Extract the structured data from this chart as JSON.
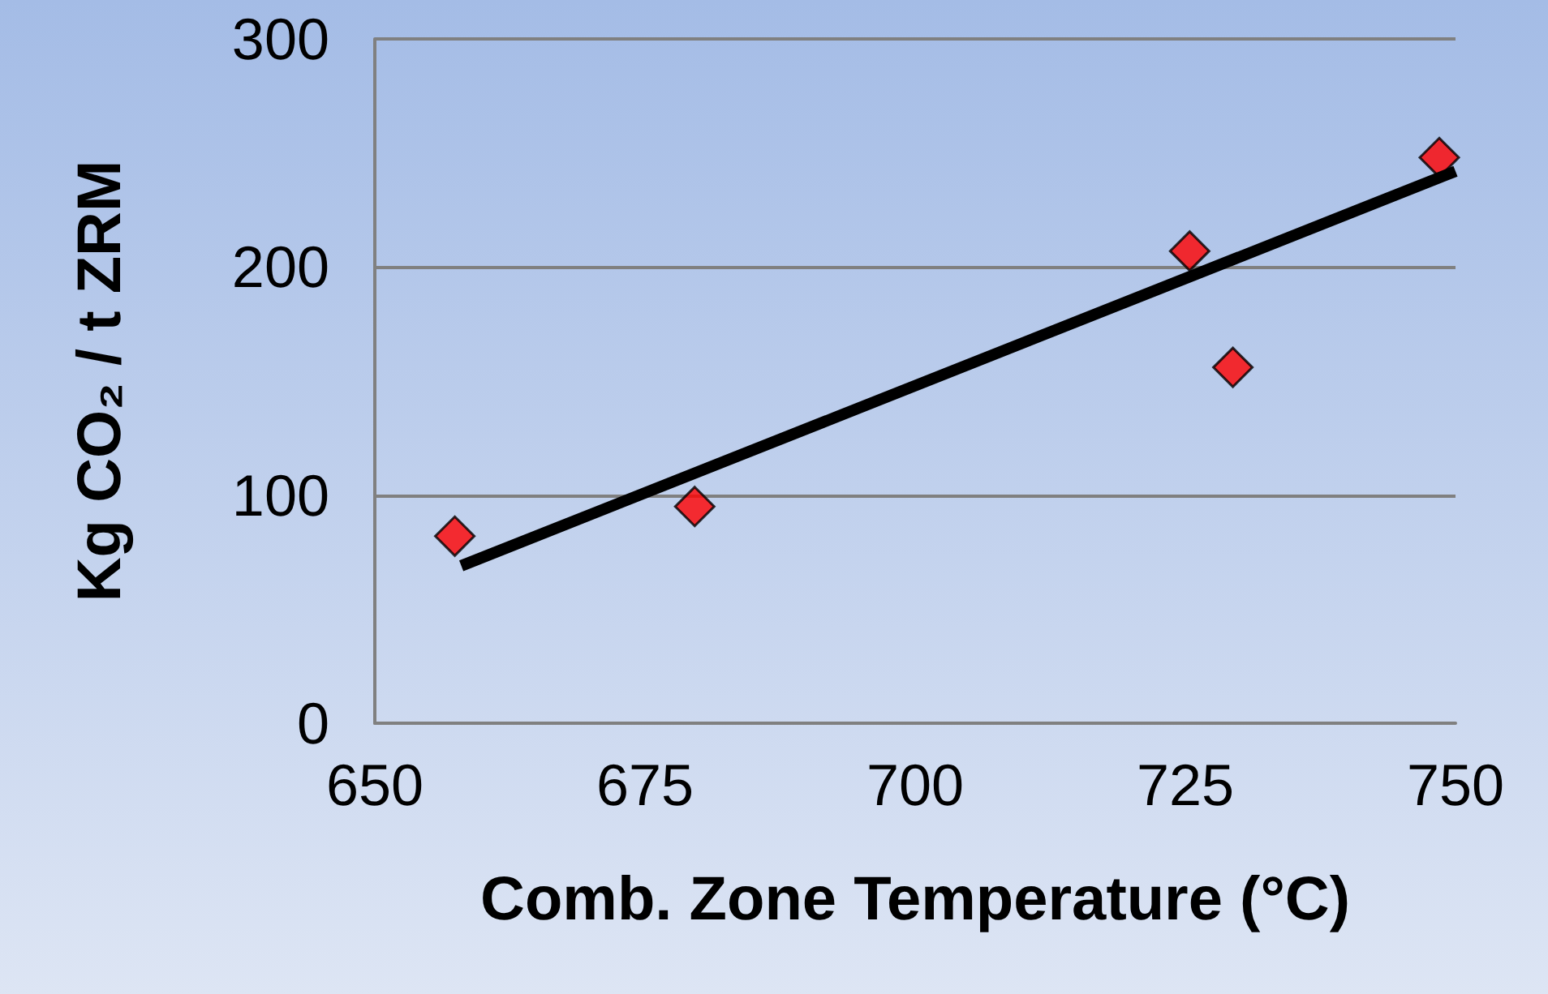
{
  "chart_data": {
    "type": "scatter",
    "xlabel": "Comb. Zone Temperature (°C)",
    "ylabel": "Kg CO₂ / t ZRM",
    "xlim": [
      650,
      750
    ],
    "xticks": [
      650,
      675,
      700,
      725,
      750
    ],
    "ylim": [
      0,
      300
    ],
    "yticks": [
      0,
      100,
      200,
      300
    ],
    "grid": "y",
    "marker": "diamond",
    "series": [
      {
        "color": "#ff0000",
        "x": [
          657.4,
          679.6,
          725.4,
          729.4,
          748.5
        ],
        "values": [
          82,
          95,
          207,
          156,
          248
        ]
      },
      {
        "type": "line",
        "color": "#000000",
        "x": [
          658,
          750
        ],
        "values": [
          69,
          242
        ],
        "marker": "none",
        "line_style": "solid"
      }
    ]
  }
}
